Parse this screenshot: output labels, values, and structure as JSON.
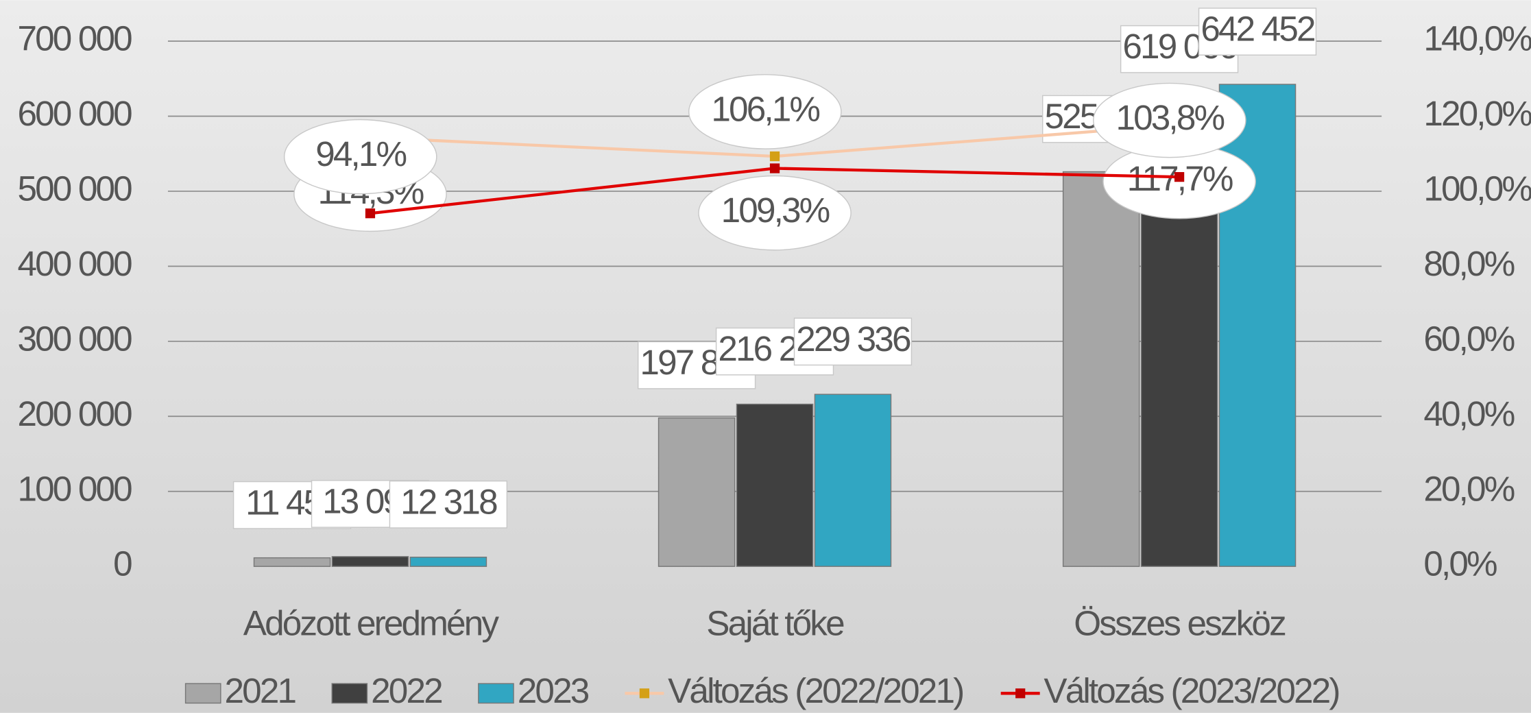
{
  "chart_data": {
    "type": "bar",
    "categories": [
      "Adózott eredmény",
      "Saját tőke",
      "Összes eszköz"
    ],
    "series": [
      {
        "name": "2021",
        "color": "#a6a6a6",
        "values": [
          11455,
          197883,
          525957
        ],
        "value_labels": [
          "11 455",
          "197 883",
          "525 957"
        ]
      },
      {
        "name": "2022",
        "color": "#404040",
        "values": [
          13093,
          216223,
          619066
        ],
        "value_labels": [
          "13 093",
          "216 223",
          "619 066"
        ]
      },
      {
        "name": "2023",
        "color": "#31a6c2",
        "values": [
          12318,
          229336,
          642452
        ],
        "value_labels": [
          "12 318",
          "229 336",
          "642 452"
        ]
      },
      {
        "name": "Változás (2022/2021)",
        "type": "line",
        "axis": "y2",
        "color": "#f8c8a8",
        "marker_color": "#d4a017",
        "label_color": "#f4b183",
        "values": [
          114.3,
          109.3,
          117.7
        ],
        "value_labels": [
          "114,3%",
          "109,3%",
          "117,7%"
        ]
      },
      {
        "name": "Változás (2023/2022)",
        "type": "line",
        "axis": "y2",
        "color": "#e00000",
        "marker_color": "#c00000",
        "label_color": "#e00000",
        "values": [
          94.1,
          106.1,
          103.8
        ],
        "value_labels": [
          "94,1%",
          "106,1%",
          "103,8%"
        ]
      }
    ],
    "ylim": [
      0,
      700000
    ],
    "yticks": [
      0,
      {
        "value": 100000,
        "label": "100 000"
      },
      {
        "value": 200000,
        "label": "200 000"
      },
      {
        "value": 300000,
        "label": "300 000"
      },
      {
        "value": 400000,
        "label": "400 000"
      },
      {
        "value": 500000,
        "label": "500 000"
      },
      {
        "value": 600000,
        "label": "600 000"
      },
      {
        "value": 700000,
        "label": "700 000"
      }
    ],
    "y2lim": [
      0,
      140
    ],
    "y2ticks": [
      {
        "value": 0,
        "label": "0,0%"
      },
      {
        "value": 20,
        "label": "20,0%"
      },
      {
        "value": 40,
        "label": "40,0%"
      },
      {
        "value": 60,
        "label": "60,0%"
      },
      {
        "value": 80,
        "label": "80,0%"
      },
      {
        "value": 100,
        "label": "100,0%"
      },
      {
        "value": 120,
        "label": "120,0%"
      },
      {
        "value": 140,
        "label": "140,0%"
      }
    ],
    "grid": true,
    "legend": "bottom"
  }
}
